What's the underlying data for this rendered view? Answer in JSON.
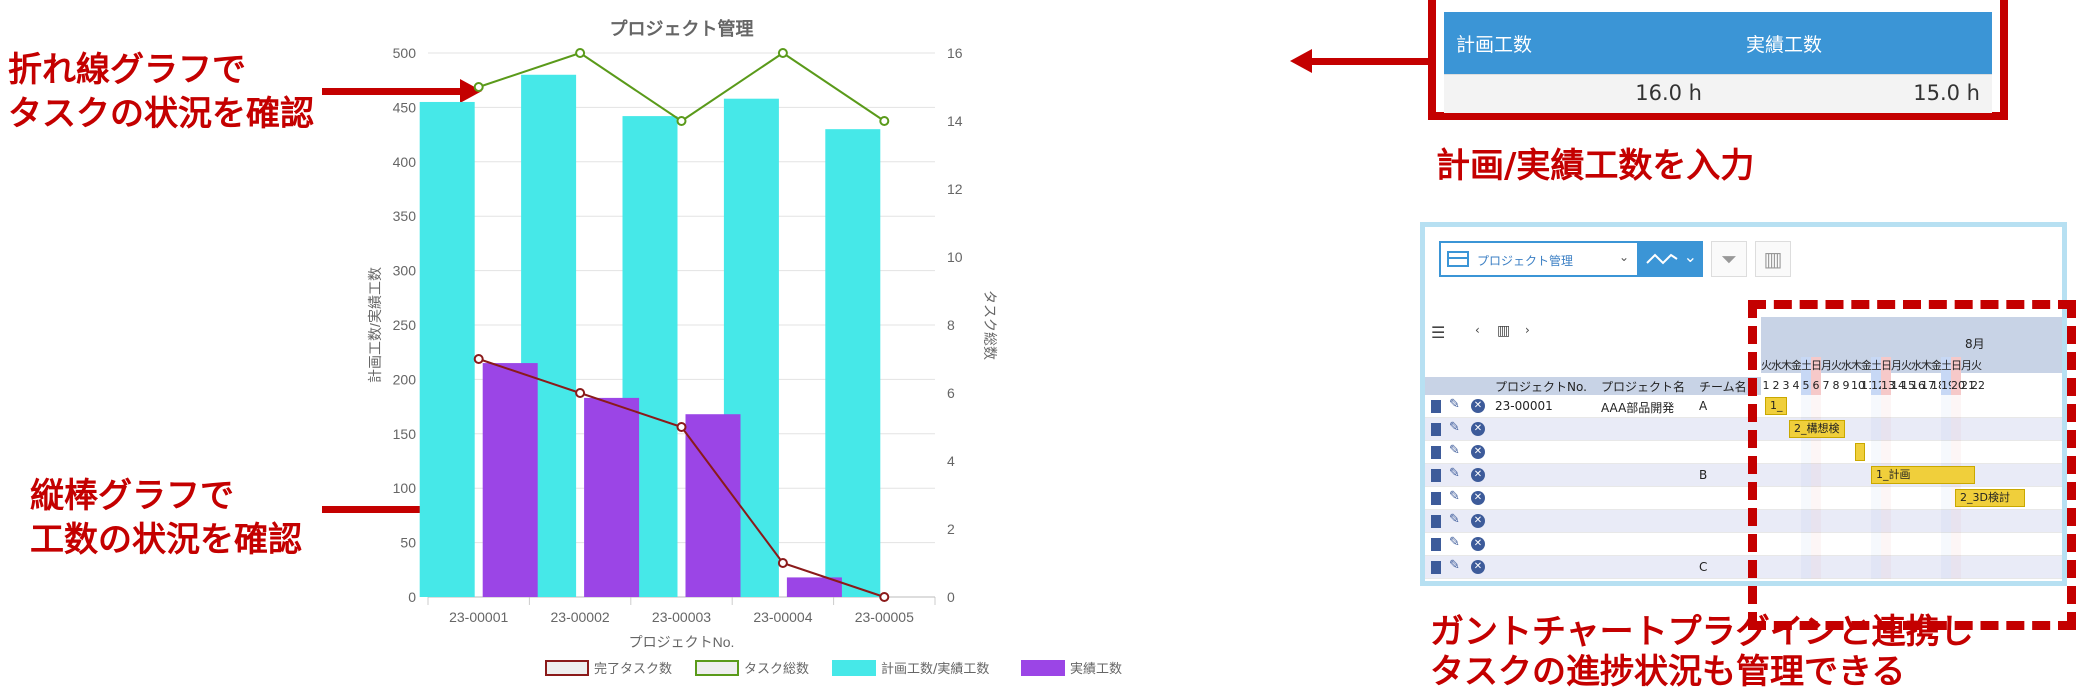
{
  "annotations": {
    "line_note_line1": "折れ線グラフで",
    "line_note_line2": "タスクの状況を確認",
    "bar_note_line1": "縦棒グラフで",
    "bar_note_line2": "工数の状況を確認",
    "input_note": "計画/実績工数を入力",
    "gantt_note_line1": "ガントチャートプラグインと連携し",
    "gantt_note_line2": "タスクの進捗状況も管理できる"
  },
  "hours_table": {
    "col_planned": "計画工数",
    "col_actual": "実績工数",
    "planned_value": "16.0 h",
    "actual_value": "15.0 h"
  },
  "gantt": {
    "view_select": "プロジェクト管理",
    "month": "8月",
    "weekdays": [
      "火",
      "水",
      "木",
      "金",
      "土",
      "日",
      "月",
      "火",
      "水",
      "木",
      "金",
      "土",
      "日",
      "月",
      "火",
      "水",
      "木",
      "金",
      "土",
      "日",
      "月",
      "火"
    ],
    "days": [
      "1",
      "2",
      "3",
      "4",
      "5",
      "6",
      "7",
      "8",
      "9",
      "10",
      "11",
      "12",
      "13",
      "14",
      "15",
      "16",
      "17",
      "18",
      "19",
      "20",
      "21",
      "22"
    ],
    "columns": [
      "プロジェクトNo.",
      "プロジェクト名",
      "チーム名"
    ],
    "rows": [
      {
        "no": "23-00001",
        "name": "AAA部品開発",
        "team": "A"
      },
      {
        "no": "",
        "name": "",
        "team": ""
      },
      {
        "no": "",
        "name": "",
        "team": ""
      },
      {
        "no": "",
        "name": "",
        "team": "B"
      },
      {
        "no": "",
        "name": "",
        "team": ""
      },
      {
        "no": "",
        "name": "",
        "team": ""
      },
      {
        "no": "",
        "name": "",
        "team": ""
      },
      {
        "no": "",
        "name": "",
        "team": "C"
      }
    ],
    "bars": [
      {
        "label": "1_"
      },
      {
        "label": "2_構想検"
      },
      {
        "label": ""
      },
      {
        "label": "1_計画"
      },
      {
        "label": "2_3D検討"
      }
    ],
    "colors": {
      "saturday": "#c7d8f5",
      "sunday": "#f6c9c9",
      "bar": "#f0cf3b",
      "header": "#c8d3e6"
    }
  },
  "chart_data": {
    "type": "bar",
    "title": "プロジェクト管理",
    "xlabel": "プロジェクトNo.",
    "ylabel": "計画工数/実績工数",
    "y2label": "タスク総数",
    "categories": [
      "23-00001",
      "23-00002",
      "23-00003",
      "23-00004",
      "23-00005"
    ],
    "ylim": [
      0,
      500
    ],
    "y2lim": [
      0,
      16
    ],
    "yticks": [
      0,
      50,
      100,
      150,
      200,
      250,
      300,
      350,
      400,
      450,
      500
    ],
    "y2ticks": [
      0,
      2,
      4,
      6,
      8,
      10,
      12,
      14,
      16
    ],
    "series": [
      {
        "name": "完了タスク数",
        "type": "line",
        "axis": "right",
        "color": "#8b1a1a",
        "values": [
          7,
          6,
          5,
          1,
          0
        ]
      },
      {
        "name": "タスク総数",
        "type": "line",
        "axis": "right",
        "color": "#5a9a1a",
        "values": [
          15,
          16,
          14,
          16,
          14
        ]
      },
      {
        "name": "計画工数/実績工数",
        "type": "bar",
        "axis": "left",
        "color": "#46e8e8",
        "values": [
          455,
          480,
          442,
          458,
          430
        ]
      },
      {
        "name": "実績工数",
        "type": "bar",
        "axis": "left",
        "color": "#9b45e6",
        "values": [
          215,
          183,
          168,
          18,
          0
        ]
      }
    ],
    "grid": true,
    "legend": "bottom"
  }
}
